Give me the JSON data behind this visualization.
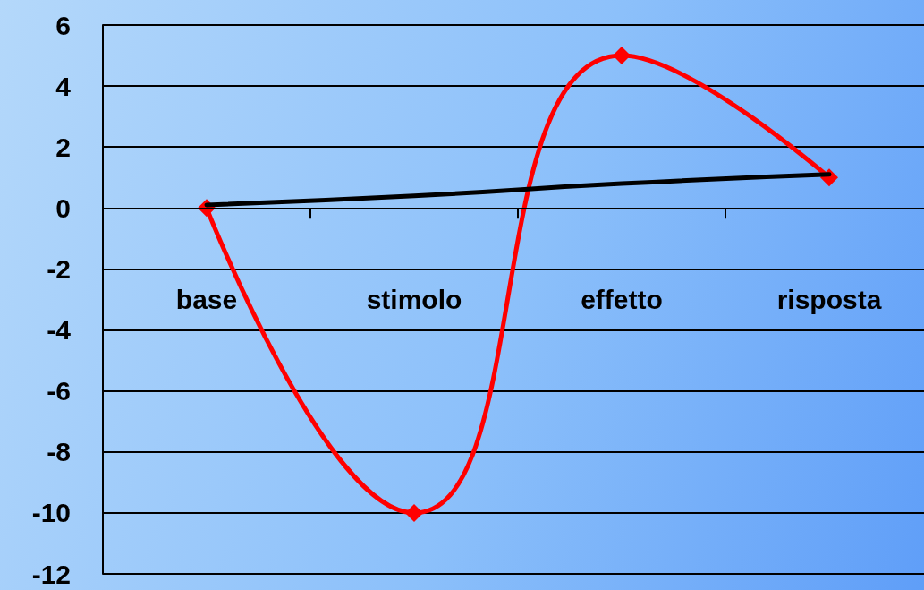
{
  "chart_data": {
    "type": "line",
    "categories": [
      "base",
      "stimolo",
      "effetto",
      "risposta"
    ],
    "series": [
      {
        "color": "#ff0000",
        "values": [
          0,
          -10,
          5,
          1
        ],
        "marker": "diamond"
      },
      {
        "color": "#000000",
        "values": [
          0.1,
          0.4,
          0.8,
          1.1
        ],
        "marker": "none"
      }
    ],
    "ylim": [
      -12,
      6
    ],
    "yticks": [
      -12,
      -10,
      -8,
      -6,
      -4,
      -2,
      0,
      2,
      4,
      6
    ],
    "grid": "y"
  }
}
